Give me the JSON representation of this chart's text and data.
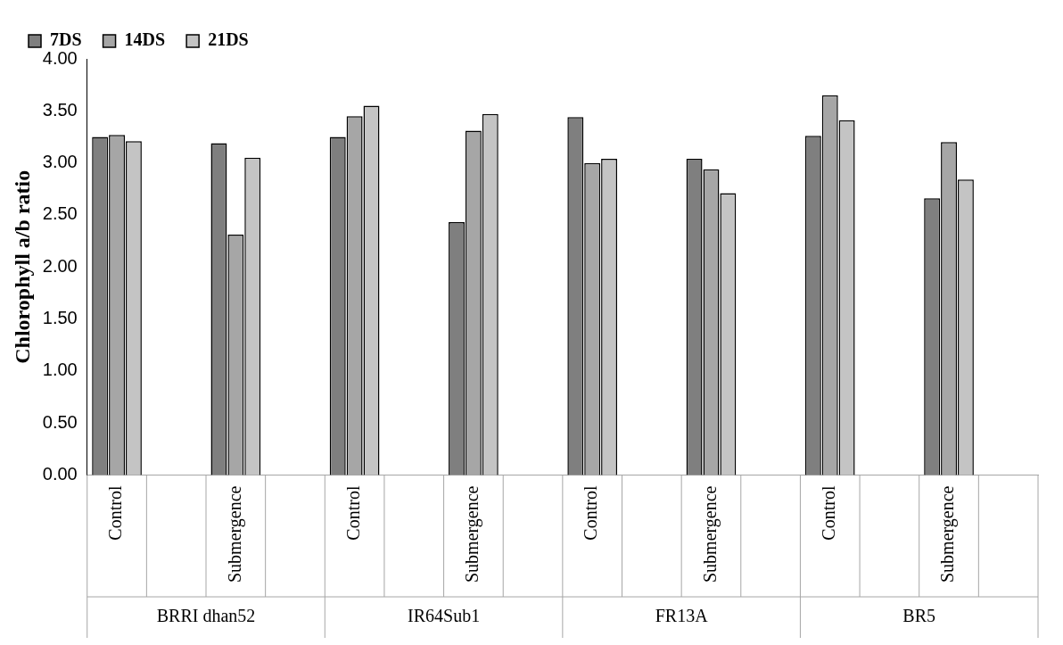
{
  "chart_data": {
    "type": "bar",
    "ylabel": "Chlorophyll a/b ratio",
    "categories": [
      "Control",
      null,
      "Submergence",
      null,
      "Control",
      null,
      "Submergence",
      null,
      "Control",
      null,
      "Submergence",
      null,
      "Control",
      null,
      "Submergence",
      null
    ],
    "series": [
      {
        "name": "7DS",
        "color": "#7f7f7f",
        "values": [
          3.25,
          null,
          3.19,
          null,
          3.25,
          null,
          2.43,
          null,
          3.44,
          null,
          3.04,
          null,
          3.26,
          null,
          2.66,
          null
        ]
      },
      {
        "name": "14DS",
        "color": "#a6a6a6",
        "values": [
          3.27,
          null,
          2.31,
          null,
          3.45,
          null,
          3.31,
          null,
          3.0,
          null,
          2.94,
          null,
          3.65,
          null,
          3.2,
          null
        ]
      },
      {
        "name": "21DS",
        "color": "#c4c4c4",
        "values": [
          3.21,
          null,
          3.05,
          null,
          3.55,
          null,
          3.47,
          null,
          3.04,
          null,
          2.71,
          null,
          3.41,
          null,
          2.84,
          null
        ]
      }
    ],
    "annotations": [
      "BRRI dhan52",
      "IR64Sub1",
      "FR13A",
      "BR5"
    ],
    "ylim": [
      0,
      4
    ],
    "yticks": [
      {
        "value": 0,
        "label": "0.00"
      },
      {
        "value": 0.5,
        "label": "0.50"
      },
      {
        "value": 1,
        "label": "1.00"
      },
      {
        "value": 1.5,
        "label": "1.50"
      },
      {
        "value": 2,
        "label": "2.00"
      },
      {
        "value": 2.5,
        "label": "2.50"
      },
      {
        "value": 3,
        "label": "3.00"
      },
      {
        "value": 3.5,
        "label": "3.50"
      },
      {
        "value": 4,
        "label": "4.00"
      }
    ],
    "grid": false,
    "legend": "top left"
  }
}
